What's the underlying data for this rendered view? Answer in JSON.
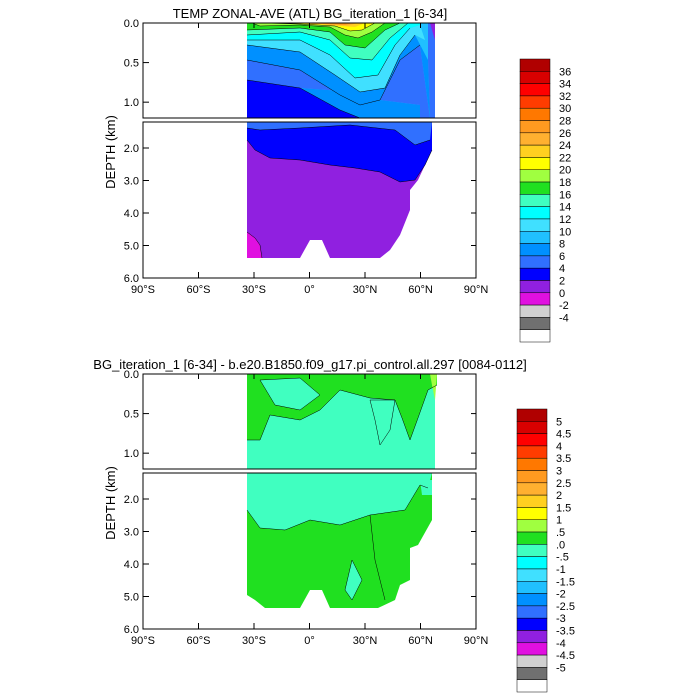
{
  "panels": [
    {
      "title": "TEMP ZONAL-AVE (ATL) BG_iteration_1 [6-34]",
      "ylabel": "DEPTH (km)",
      "chart_data": {
        "type": "heatmap",
        "title": "TEMP ZONAL-AVE (ATL) BG_iteration_1 [6-34]",
        "xlabel": "",
        "ylabel": "DEPTH (km)",
        "xlim": [
          -90,
          90
        ],
        "upper_ylim": [
          0.0,
          1.2
        ],
        "lower_ylim": [
          1.2,
          6.0
        ],
        "x_ticks": [
          -90,
          -60,
          -30,
          0,
          30,
          60,
          90
        ],
        "x_tick_labels": [
          "90°S",
          "60°S",
          "30°S",
          "0°",
          "30°N",
          "60°N",
          "90°N"
        ],
        "upper_y_ticks": [
          0.0,
          0.5,
          1.0
        ],
        "upper_y_tick_labels": [
          "0.0",
          "0.5",
          "1.0"
        ],
        "lower_y_ticks": [
          2.0,
          3.0,
          4.0,
          5.0,
          6.0
        ],
        "lower_y_tick_labels": [
          "2.0",
          "3.0",
          "4.0",
          "5.0",
          "6.0"
        ],
        "colorbar": {
          "labels": [
            "36",
            "34",
            "32",
            "30",
            "28",
            "26",
            "24",
            "22",
            "20",
            "18",
            "16",
            "14",
            "12",
            "10",
            "8",
            "6",
            "4",
            "2",
            "0",
            "-2",
            "-4"
          ],
          "colors": [
            "#b00000",
            "#d80000",
            "#ff0000",
            "#ff3c00",
            "#ff7800",
            "#ff9a20",
            "#ffb030",
            "#ffd020",
            "#ffff00",
            "#a0ff40",
            "#20e020",
            "#40ffc0",
            "#00ffff",
            "#40e0ff",
            "#20c0ff",
            "#0090ff",
            "#3070ff",
            "#0000ff",
            "#9020e0",
            "#e010e0",
            "#d0d0d0",
            "#707070",
            "#ffffff"
          ]
        },
        "bottom_profile_km": [
          {
            "lat": -34,
            "depth": 4.8
          },
          {
            "lat": -25,
            "depth": 5.2
          },
          {
            "lat": -10,
            "depth": 5.3
          },
          {
            "lat": 0,
            "depth": 5.0
          },
          {
            "lat": 10,
            "depth": 5.3
          },
          {
            "lat": 30,
            "depth": 5.3
          },
          {
            "lat": 40,
            "depth": 4.8
          },
          {
            "lat": 50,
            "depth": 3.8
          },
          {
            "lat": 58,
            "depth": 3.0
          },
          {
            "lat": 65,
            "depth": 1.0
          }
        ]
      }
    },
    {
      "title": "BG_iteration_1 [6-34] - b.e20.B1850.f09_g17.pi_control.all.297 [0084-0112]",
      "ylabel": "DEPTH (km)",
      "chart_data": {
        "type": "heatmap",
        "title": "BG_iteration_1 [6-34] - b.e20.B1850.f09_g17.pi_control.all.297 [0084-0112]",
        "xlabel": "",
        "ylabel": "DEPTH (km)",
        "xlim": [
          -90,
          90
        ],
        "upper_ylim": [
          0.0,
          1.2
        ],
        "lower_ylim": [
          1.2,
          6.0
        ],
        "x_ticks": [
          -90,
          -60,
          -30,
          0,
          30,
          60,
          90
        ],
        "x_tick_labels": [
          "90°S",
          "60°S",
          "30°S",
          "0°",
          "30°N",
          "60°N",
          "90°N"
        ],
        "upper_y_ticks": [
          0.0,
          0.5,
          1.0
        ],
        "upper_y_tick_labels": [
          "0.0",
          "0.5",
          "1.0"
        ],
        "lower_y_ticks": [
          2.0,
          3.0,
          4.0,
          5.0,
          6.0
        ],
        "lower_y_tick_labels": [
          "2.0",
          "3.0",
          "4.0",
          "5.0",
          "6.0"
        ],
        "colorbar": {
          "labels": [
            "5",
            "4.5",
            "4",
            "3.5",
            "3",
            "2.5",
            "2",
            "1.5",
            "1",
            ".5",
            ".0",
            "-.5",
            "-1",
            "-1.5",
            "-2",
            "-2.5",
            "-3",
            "-3.5",
            "-4",
            "-4.5",
            "-5"
          ],
          "colors": [
            "#b00000",
            "#d80000",
            "#ff0000",
            "#ff3c00",
            "#ff7800",
            "#ff9a20",
            "#ffb030",
            "#ffd020",
            "#ffff00",
            "#a0ff40",
            "#20e020",
            "#40ffc0",
            "#00ffff",
            "#40e0ff",
            "#20c0ff",
            "#0090ff",
            "#3070ff",
            "#0000ff",
            "#9020e0",
            "#e010e0",
            "#d0d0d0",
            "#707070",
            "#ffffff"
          ]
        }
      }
    }
  ]
}
